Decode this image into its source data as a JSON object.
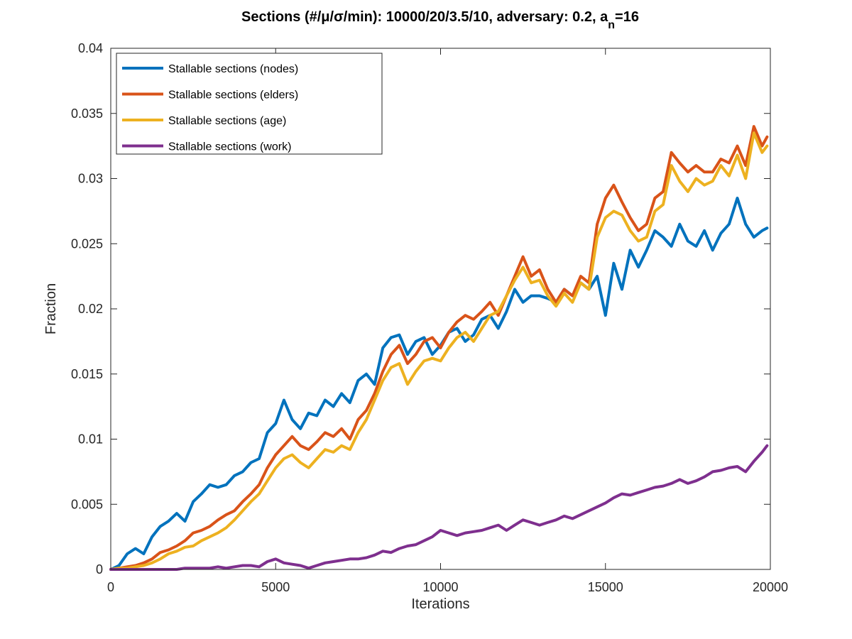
{
  "chart_data": {
    "type": "line",
    "title": {
      "main": "Sections (#/μ/σ/min): 10000/20/3.5/10, adversary: 0.2, a",
      "subscript": "n",
      "suffix": "=16"
    },
    "xlabel": "Iterations",
    "ylabel": "Fraction",
    "xlim": [
      0,
      20000
    ],
    "ylim": [
      0,
      0.04
    ],
    "x_ticks": [
      0,
      5000,
      10000,
      15000,
      20000
    ],
    "x_tick_labels": [
      "0",
      "5000",
      "10000",
      "15000",
      "20000"
    ],
    "y_ticks": [
      0,
      0.005,
      0.01,
      0.015,
      0.02,
      0.025,
      0.03,
      0.035,
      0.04
    ],
    "y_tick_labels": [
      "0",
      "0.005",
      "0.01",
      "0.015",
      "0.02",
      "0.025",
      "0.03",
      "0.035",
      "0.04"
    ],
    "grid": false,
    "legend_position": "top-left",
    "series": [
      {
        "name": "Stallable sections (nodes)",
        "color": "#0072BD",
        "x": [
          0,
          250,
          500,
          750,
          1000,
          1250,
          1500,
          1750,
          2000,
          2250,
          2500,
          2750,
          3000,
          3250,
          3500,
          3750,
          4000,
          4250,
          4500,
          4750,
          5000,
          5250,
          5500,
          5750,
          6000,
          6250,
          6500,
          6750,
          7000,
          7250,
          7500,
          7750,
          8000,
          8250,
          8500,
          8750,
          9000,
          9250,
          9500,
          9750,
          10000,
          10250,
          10500,
          10750,
          11000,
          11250,
          11500,
          11750,
          12000,
          12250,
          12500,
          12750,
          13000,
          13250,
          13500,
          13750,
          14000,
          14250,
          14500,
          14750,
          15000,
          15250,
          15500,
          15750,
          16000,
          16250,
          16500,
          16750,
          17000,
          17250,
          17500,
          17750,
          18000,
          18250,
          18500,
          18750,
          19000,
          19250,
          19500,
          19750,
          19900
        ],
        "y": [
          0,
          0.0003,
          0.0012,
          0.0016,
          0.0012,
          0.0025,
          0.0033,
          0.0037,
          0.0043,
          0.0037,
          0.0052,
          0.0058,
          0.0065,
          0.0063,
          0.0065,
          0.0072,
          0.0075,
          0.0082,
          0.0085,
          0.0105,
          0.0112,
          0.013,
          0.0115,
          0.0108,
          0.012,
          0.0118,
          0.013,
          0.0125,
          0.0135,
          0.0128,
          0.0145,
          0.015,
          0.0142,
          0.017,
          0.0178,
          0.018,
          0.0165,
          0.0175,
          0.0178,
          0.0165,
          0.0172,
          0.0182,
          0.0185,
          0.0175,
          0.018,
          0.0192,
          0.0195,
          0.0185,
          0.0198,
          0.0215,
          0.0205,
          0.021,
          0.021,
          0.0208,
          0.0205,
          0.0215,
          0.021,
          0.022,
          0.0215,
          0.0225,
          0.0195,
          0.0235,
          0.0215,
          0.0245,
          0.0232,
          0.0245,
          0.026,
          0.0255,
          0.0248,
          0.0265,
          0.0252,
          0.0248,
          0.026,
          0.0245,
          0.0258,
          0.0265,
          0.0285,
          0.0265,
          0.0255,
          0.026,
          0.0262
        ]
      },
      {
        "name": "Stallable sections (elders)",
        "color": "#D95319",
        "x": [
          0,
          250,
          500,
          750,
          1000,
          1250,
          1500,
          1750,
          2000,
          2250,
          2500,
          2750,
          3000,
          3250,
          3500,
          3750,
          4000,
          4250,
          4500,
          4750,
          5000,
          5250,
          5500,
          5750,
          6000,
          6250,
          6500,
          6750,
          7000,
          7250,
          7500,
          7750,
          8000,
          8250,
          8500,
          8750,
          9000,
          9250,
          9500,
          9750,
          10000,
          10250,
          10500,
          10750,
          11000,
          11250,
          11500,
          11750,
          12000,
          12250,
          12500,
          12750,
          13000,
          13250,
          13500,
          13750,
          14000,
          14250,
          14500,
          14750,
          15000,
          15250,
          15500,
          15750,
          16000,
          16250,
          16500,
          16750,
          17000,
          17250,
          17500,
          17750,
          18000,
          18250,
          18500,
          18750,
          19000,
          19250,
          19500,
          19750,
          19900
        ],
        "y": [
          0,
          0.0001,
          0.0002,
          0.0003,
          0.0005,
          0.0008,
          0.0013,
          0.0015,
          0.0018,
          0.0022,
          0.0028,
          0.003,
          0.0033,
          0.0038,
          0.0042,
          0.0045,
          0.0052,
          0.0058,
          0.0065,
          0.0078,
          0.0088,
          0.0095,
          0.0102,
          0.0095,
          0.0092,
          0.0098,
          0.0105,
          0.0102,
          0.0108,
          0.01,
          0.0115,
          0.0122,
          0.0135,
          0.0152,
          0.0165,
          0.0172,
          0.0158,
          0.0165,
          0.0175,
          0.0178,
          0.017,
          0.0182,
          0.019,
          0.0195,
          0.0192,
          0.0198,
          0.0205,
          0.0195,
          0.021,
          0.0225,
          0.024,
          0.0225,
          0.023,
          0.0215,
          0.0205,
          0.0215,
          0.021,
          0.0225,
          0.022,
          0.0265,
          0.0285,
          0.0295,
          0.0282,
          0.027,
          0.026,
          0.0265,
          0.0285,
          0.029,
          0.032,
          0.0312,
          0.0305,
          0.031,
          0.0305,
          0.0305,
          0.0315,
          0.0312,
          0.0325,
          0.031,
          0.034,
          0.0325,
          0.0332
        ]
      },
      {
        "name": "Stallable sections (age)",
        "color": "#EDB120",
        "x": [
          0,
          250,
          500,
          750,
          1000,
          1250,
          1500,
          1750,
          2000,
          2250,
          2500,
          2750,
          3000,
          3250,
          3500,
          3750,
          4000,
          4250,
          4500,
          4750,
          5000,
          5250,
          5500,
          5750,
          6000,
          6250,
          6500,
          6750,
          7000,
          7250,
          7500,
          7750,
          8000,
          8250,
          8500,
          8750,
          9000,
          9250,
          9500,
          9750,
          10000,
          10250,
          10500,
          10750,
          11000,
          11250,
          11500,
          11750,
          12000,
          12250,
          12500,
          12750,
          13000,
          13250,
          13500,
          13750,
          14000,
          14250,
          14500,
          14750,
          15000,
          15250,
          15500,
          15750,
          16000,
          16250,
          16500,
          16750,
          17000,
          17250,
          17500,
          17750,
          18000,
          18250,
          18500,
          18750,
          19000,
          19250,
          19500,
          19750,
          19900
        ],
        "y": [
          0,
          0.0001,
          0.0001,
          0.0002,
          0.0003,
          0.0005,
          0.0008,
          0.0012,
          0.0014,
          0.0017,
          0.0018,
          0.0022,
          0.0025,
          0.0028,
          0.0032,
          0.0038,
          0.0045,
          0.0052,
          0.0058,
          0.0068,
          0.0078,
          0.0085,
          0.0088,
          0.0082,
          0.0078,
          0.0085,
          0.0092,
          0.009,
          0.0095,
          0.0092,
          0.0105,
          0.0115,
          0.013,
          0.0145,
          0.0155,
          0.0158,
          0.0142,
          0.0152,
          0.016,
          0.0162,
          0.016,
          0.017,
          0.0178,
          0.0182,
          0.0175,
          0.0185,
          0.0195,
          0.0198,
          0.021,
          0.0222,
          0.0232,
          0.022,
          0.0222,
          0.021,
          0.0202,
          0.0212,
          0.0205,
          0.022,
          0.0215,
          0.0255,
          0.027,
          0.0275,
          0.0272,
          0.026,
          0.0252,
          0.0255,
          0.0275,
          0.028,
          0.031,
          0.0298,
          0.029,
          0.03,
          0.0295,
          0.0298,
          0.031,
          0.0302,
          0.0318,
          0.03,
          0.0335,
          0.032,
          0.0325
        ]
      },
      {
        "name": "Stallable sections (work)",
        "color": "#7E2F8E",
        "x": [
          0,
          250,
          500,
          750,
          1000,
          1250,
          1500,
          1750,
          2000,
          2250,
          2500,
          2750,
          3000,
          3250,
          3500,
          3750,
          4000,
          4250,
          4500,
          4750,
          5000,
          5250,
          5500,
          5750,
          6000,
          6250,
          6500,
          6750,
          7000,
          7250,
          7500,
          7750,
          8000,
          8250,
          8500,
          8750,
          9000,
          9250,
          9500,
          9750,
          10000,
          10250,
          10500,
          10750,
          11000,
          11250,
          11500,
          11750,
          12000,
          12250,
          12500,
          12750,
          13000,
          13250,
          13500,
          13750,
          14000,
          14250,
          14500,
          14750,
          15000,
          15250,
          15500,
          15750,
          16000,
          16250,
          16500,
          16750,
          17000,
          17250,
          17500,
          17750,
          18000,
          18250,
          18500,
          18750,
          19000,
          19250,
          19500,
          19750,
          19900
        ],
        "y": [
          0,
          0,
          0,
          0,
          0,
          0,
          0,
          0,
          0,
          0.0001,
          0.0001,
          0.0001,
          0.0001,
          0.0002,
          0.0001,
          0.0002,
          0.0003,
          0.0003,
          0.0002,
          0.0006,
          0.0008,
          0.0005,
          0.0004,
          0.0003,
          0.0001,
          0.0003,
          0.0005,
          0.0006,
          0.0007,
          0.0008,
          0.0008,
          0.0009,
          0.0011,
          0.0014,
          0.0013,
          0.0016,
          0.0018,
          0.0019,
          0.0022,
          0.0025,
          0.003,
          0.0028,
          0.0026,
          0.0028,
          0.0029,
          0.003,
          0.0032,
          0.0034,
          0.003,
          0.0034,
          0.0038,
          0.0036,
          0.0034,
          0.0036,
          0.0038,
          0.0041,
          0.0039,
          0.0042,
          0.0045,
          0.0048,
          0.0051,
          0.0055,
          0.0058,
          0.0057,
          0.0059,
          0.0061,
          0.0063,
          0.0064,
          0.0066,
          0.0069,
          0.0066,
          0.0068,
          0.0071,
          0.0075,
          0.0076,
          0.0078,
          0.0079,
          0.0075,
          0.0083,
          0.009,
          0.0095
        ]
      }
    ]
  }
}
